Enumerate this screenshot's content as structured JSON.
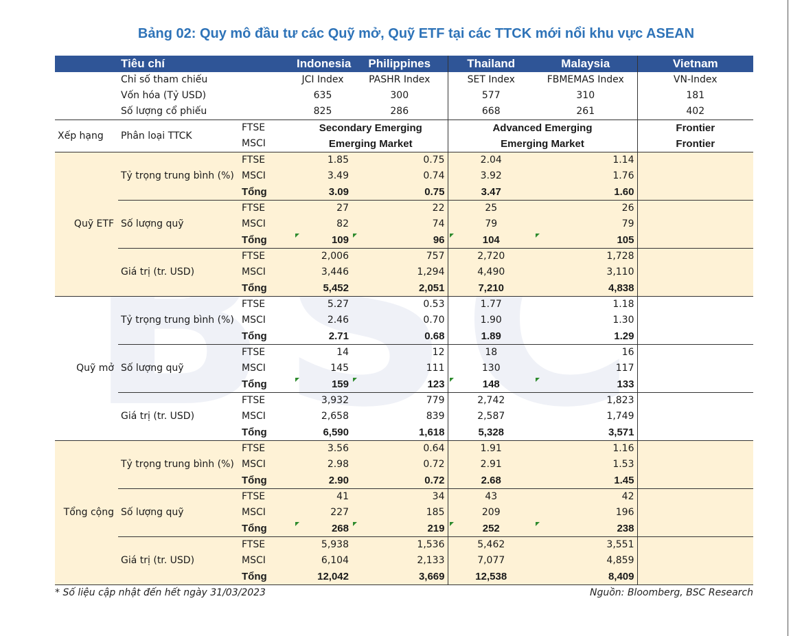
{
  "title": "Bảng 02: Quy mô đầu tư các Quỹ mở, Quỹ ETF tại các TTCK mới nổi khu vực ASEAN",
  "header": {
    "criteria": "Tiêu chí",
    "countries": [
      "Indonesia",
      "Philippines",
      "Thailand",
      "Malaysia",
      "Vietnam"
    ]
  },
  "info_rows": [
    {
      "label": "Chỉ số tham chiếu",
      "values": [
        "JCI Index",
        "PASHR Index",
        "SET Index",
        "FBMEMAS Index",
        "VN-Index"
      ]
    },
    {
      "label": "Vốn hóa (Tỷ USD)",
      "values": [
        "635",
        "300",
        "577",
        "310",
        "181"
      ]
    },
    {
      "label": "Số lượng cổ phiếu",
      "values": [
        "825",
        "286",
        "668",
        "261",
        "402"
      ]
    }
  ],
  "ranking": {
    "group": "Xếp hạng",
    "label": "Phân loại TTCK",
    "rows": [
      {
        "index": "FTSE",
        "secondary": "Secondary Emerging",
        "advanced": "Advanced Emerging",
        "vietnam": "Frontier"
      },
      {
        "index": "MSCI",
        "secondary": "Emerging Market",
        "advanced": "Emerging Market",
        "vietnam": "Frontier"
      }
    ]
  },
  "sections": [
    {
      "group": "Quỹ ETF",
      "subgroups": [
        {
          "label": "Tỷ trọng trung bình (%)",
          "rows": [
            {
              "index": "FTSE",
              "values": [
                "1.85",
                "0.75",
                "2.04",
                "1.14"
              ]
            },
            {
              "index": "MSCI",
              "values": [
                "3.49",
                "0.74",
                "3.92",
                "1.76"
              ]
            },
            {
              "index": "Tổng",
              "values": [
                "3.09",
                "0.75",
                "3.47",
                "1.60"
              ]
            }
          ]
        },
        {
          "label": "Số lượng quỹ",
          "rows": [
            {
              "index": "FTSE",
              "values": [
                "27",
                "22",
                "25",
                "26"
              ]
            },
            {
              "index": "MSCI",
              "values": [
                "82",
                "74",
                "79",
                "79"
              ]
            },
            {
              "index": "Tổng",
              "values": [
                "109",
                "96",
                "104",
                "105"
              ]
            }
          ]
        },
        {
          "label": "Giá trị (tr. USD)",
          "rows": [
            {
              "index": "FTSE",
              "values": [
                "2,006",
                "757",
                "2,720",
                "1,728"
              ]
            },
            {
              "index": "MSCI",
              "values": [
                "3,446",
                "1,294",
                "4,490",
                "3,110"
              ]
            },
            {
              "index": "Tổng",
              "values": [
                "5,452",
                "2,051",
                "7,210",
                "4,838"
              ]
            }
          ]
        }
      ]
    },
    {
      "group": "Quỹ mở",
      "subgroups": [
        {
          "label": "Tỷ trọng trung bình (%)",
          "rows": [
            {
              "index": "FTSE",
              "values": [
                "5.27",
                "0.53",
                "1.77",
                "1.18"
              ]
            },
            {
              "index": "MSCI",
              "values": [
                "2.46",
                "0.70",
                "1.90",
                "1.30"
              ]
            },
            {
              "index": "Tổng",
              "values": [
                "2.71",
                "0.68",
                "1.89",
                "1.29"
              ]
            }
          ]
        },
        {
          "label": "Số lượng quỹ",
          "rows": [
            {
              "index": "FTSE",
              "values": [
                "14",
                "12",
                "18",
                "16"
              ]
            },
            {
              "index": "MSCI",
              "values": [
                "145",
                "111",
                "130",
                "117"
              ]
            },
            {
              "index": "Tổng",
              "values": [
                "159",
                "123",
                "148",
                "133"
              ]
            }
          ]
        },
        {
          "label": "Giá trị (tr. USD)",
          "rows": [
            {
              "index": "FTSE",
              "values": [
                "3,932",
                "779",
                "2,742",
                "1,823"
              ]
            },
            {
              "index": "MSCI",
              "values": [
                "2,658",
                "839",
                "2,587",
                "1,749"
              ]
            },
            {
              "index": "Tổng",
              "values": [
                "6,590",
                "1,618",
                "5,328",
                "3,571"
              ]
            }
          ]
        }
      ]
    },
    {
      "group": "Tổng cộng",
      "subgroups": [
        {
          "label": "Tỷ trọng trung bình (%)",
          "rows": [
            {
              "index": "FTSE",
              "values": [
                "3.56",
                "0.64",
                "1.91",
                "1.16"
              ]
            },
            {
              "index": "MSCI",
              "values": [
                "2.98",
                "0.72",
                "2.91",
                "1.53"
              ]
            },
            {
              "index": "Tổng",
              "values": [
                "2.90",
                "0.72",
                "2.68",
                "1.45"
              ]
            }
          ]
        },
        {
          "label": "Số lượng quỹ",
          "rows": [
            {
              "index": "FTSE",
              "values": [
                "41",
                "34",
                "43",
                "42"
              ]
            },
            {
              "index": "MSCI",
              "values": [
                "227",
                "185",
                "209",
                "196"
              ]
            },
            {
              "index": "Tổng",
              "values": [
                "268",
                "219",
                "252",
                "238"
              ]
            }
          ]
        },
        {
          "label": "Giá trị (tr. USD)",
          "rows": [
            {
              "index": "FTSE",
              "values": [
                "5,938",
                "1,536",
                "5,462",
                "3,551"
              ]
            },
            {
              "index": "MSCI",
              "values": [
                "6,104",
                "2,133",
                "7,077",
                "4,859"
              ]
            },
            {
              "index": "Tổng",
              "values": [
                "12,042",
                "3,669",
                "12,538",
                "8,409"
              ]
            }
          ]
        }
      ]
    }
  ],
  "watermark": {
    "logo": "BSC",
    "subtitle": "BIDV SECURITIES BSC"
  },
  "footer": {
    "note": "* Số liệu cập nhật đến hết ngày 31/03/2023",
    "source": "Nguồn: Bloomberg, BSC Research"
  },
  "colors": {
    "title": "#2e73b8",
    "header_bg": "#2f5597",
    "highlight_bg": "#fef2d6",
    "marker": "#2e8b2e"
  }
}
